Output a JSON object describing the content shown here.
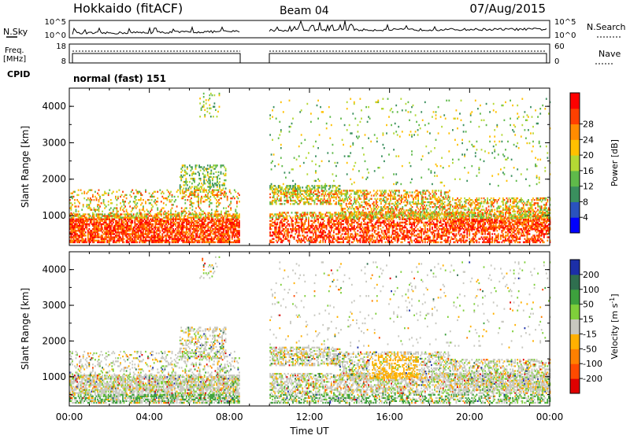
{
  "header": {
    "station": "Hokkaido (fitACF)",
    "beam": "Beam 04",
    "date": "07/Aug/2015"
  },
  "top_panels": {
    "nsky": {
      "label": "N.Sky",
      "ticks": [
        "10^5",
        "10^0"
      ]
    },
    "nsearch": {
      "label": "N.Search",
      "ticks": [
        "10^5",
        "10^0"
      ]
    },
    "freq": {
      "label_line1": "Freq.",
      "label_line2": "[MHz]",
      "ticks": [
        "18",
        "8"
      ]
    },
    "nave": {
      "label": "Nave",
      "ticks": [
        "60",
        "0"
      ]
    },
    "cpid": {
      "label": "CPID",
      "value": "normal (fast) 151"
    }
  },
  "x_axis": {
    "label": "Time UT",
    "ticks": [
      "00:00",
      "04:00",
      "08:00",
      "12:00",
      "16:00",
      "20:00",
      "00:00"
    ]
  },
  "chart_data": [
    {
      "type": "heatmap",
      "quantity": "Power",
      "xlabel": "Time UT",
      "ylabel": "Slant Range [km]",
      "xlim": [
        0,
        24
      ],
      "ylim": [
        180,
        4500
      ],
      "yticks": [
        "1000",
        "2000",
        "3000",
        "4000"
      ],
      "data_gap_hours": [
        8.5,
        10.0
      ],
      "colorbar": {
        "label": "Power [dB]",
        "ticks": [
          "4",
          "8",
          "12",
          "16",
          "20",
          "24",
          "28"
        ],
        "range": [
          0,
          30
        ],
        "colors": [
          "#0000ff",
          "#2a52be",
          "#3a8f5e",
          "#5fba4a",
          "#b4d834",
          "#ffc000",
          "#ff8c00",
          "#ff4000",
          "#ff0000"
        ]
      }
    },
    {
      "type": "heatmap",
      "quantity": "Velocity",
      "xlabel": "Time UT",
      "ylabel": "Slant Range [km]",
      "xlim": [
        0,
        24
      ],
      "ylim": [
        180,
        4500
      ],
      "yticks": [
        "1000",
        "2000",
        "3000",
        "4000"
      ],
      "data_gap_hours": [
        8.5,
        10.0
      ],
      "colorbar": {
        "label_main": "Velocity [m s",
        "label_sup": "-1",
        "label_end": "]",
        "ticks": [
          "200",
          "100",
          "50",
          "15",
          "-15",
          "-50",
          "-100",
          "-200"
        ],
        "range": [
          -250,
          250
        ],
        "colors": [
          "#1c2fa8",
          "#2f6f4f",
          "#3da13d",
          "#7fcf3a",
          "#c8c8c0",
          "#ffb000",
          "#ff8000",
          "#ff4a00",
          "#e00000"
        ]
      }
    }
  ]
}
